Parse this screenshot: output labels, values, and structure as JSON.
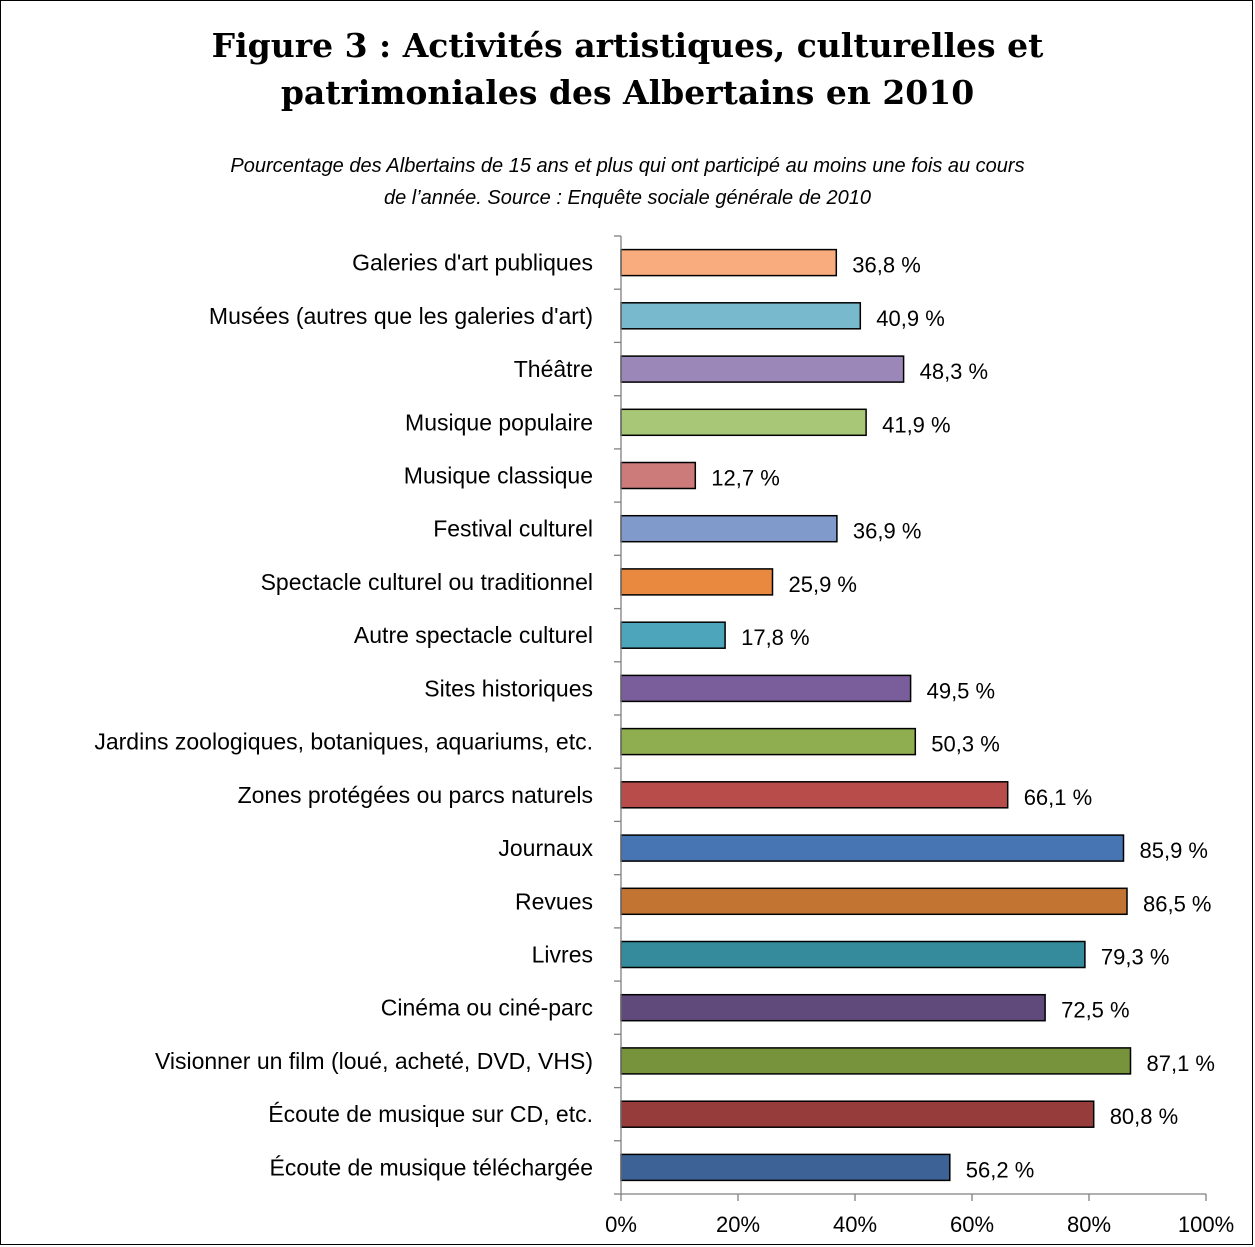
{
  "chart_data": {
    "type": "bar",
    "orientation": "horizontal",
    "title_line1": "Figure 3 : Activités artistiques, culturelles et",
    "title_line2": "patrimoniales des Albertains en 2010",
    "subtitle_line1": "Pourcentage des Albertains de 15 ans et plus qui ont participé au moins une fois au cours",
    "subtitle_line2": "de l’année. Source : Enquête sociale générale de 2010",
    "categories": [
      "Galeries d'art publiques",
      "Musées (autres que les galeries d'art)",
      "Théâtre",
      "Musique populaire",
      "Musique classique",
      "Festival culturel",
      "Spectacle culturel ou traditionnel",
      "Autre spectacle culturel",
      "Sites historiques",
      "Jardins zoologiques, botaniques, aquariums, etc.",
      "Zones protégées ou parcs naturels",
      "Journaux",
      "Revues",
      "Livres",
      "Cinéma ou ciné-parc",
      "Visionner un film (loué, acheté, DVD, VHS)",
      "Écoute de musique sur CD, etc.",
      "Écoute de musique téléchargée"
    ],
    "values": [
      36.8,
      40.9,
      48.3,
      41.9,
      12.7,
      36.9,
      25.9,
      17.8,
      49.5,
      50.3,
      66.1,
      85.9,
      86.5,
      79.3,
      72.5,
      87.1,
      80.8,
      56.2
    ],
    "value_labels": [
      "36,8 %",
      "40,9 %",
      "48,3 %",
      "41,9 %",
      "12,7 %",
      "36,9 %",
      "25,9 %",
      "17,8 %",
      "49,5 %",
      "50,3 %",
      "66,1 %",
      "85,9 %",
      "86,5 %",
      "79,3 %",
      "72,5 %",
      "87,1 %",
      "80,8 %",
      "56,2 %"
    ],
    "colors": [
      "#F9AC7E",
      "#78B9CD",
      "#9C88B8",
      "#A8C878",
      "#CC7B7A",
      "#7F9ACB",
      "#E8893F",
      "#4CA5BB",
      "#7A5E9C",
      "#8FAE50",
      "#B84C4A",
      "#4775B3",
      "#C27532",
      "#358B9C",
      "#604A7B",
      "#77933C",
      "#963C3A",
      "#3D6396"
    ],
    "xlim": [
      0,
      100
    ],
    "xticks": [
      0,
      20,
      40,
      60,
      80,
      100
    ],
    "xtick_labels": [
      "0%",
      "20%",
      "40%",
      "60%",
      "80%",
      "100%"
    ],
    "grid": false,
    "legend": "none"
  }
}
